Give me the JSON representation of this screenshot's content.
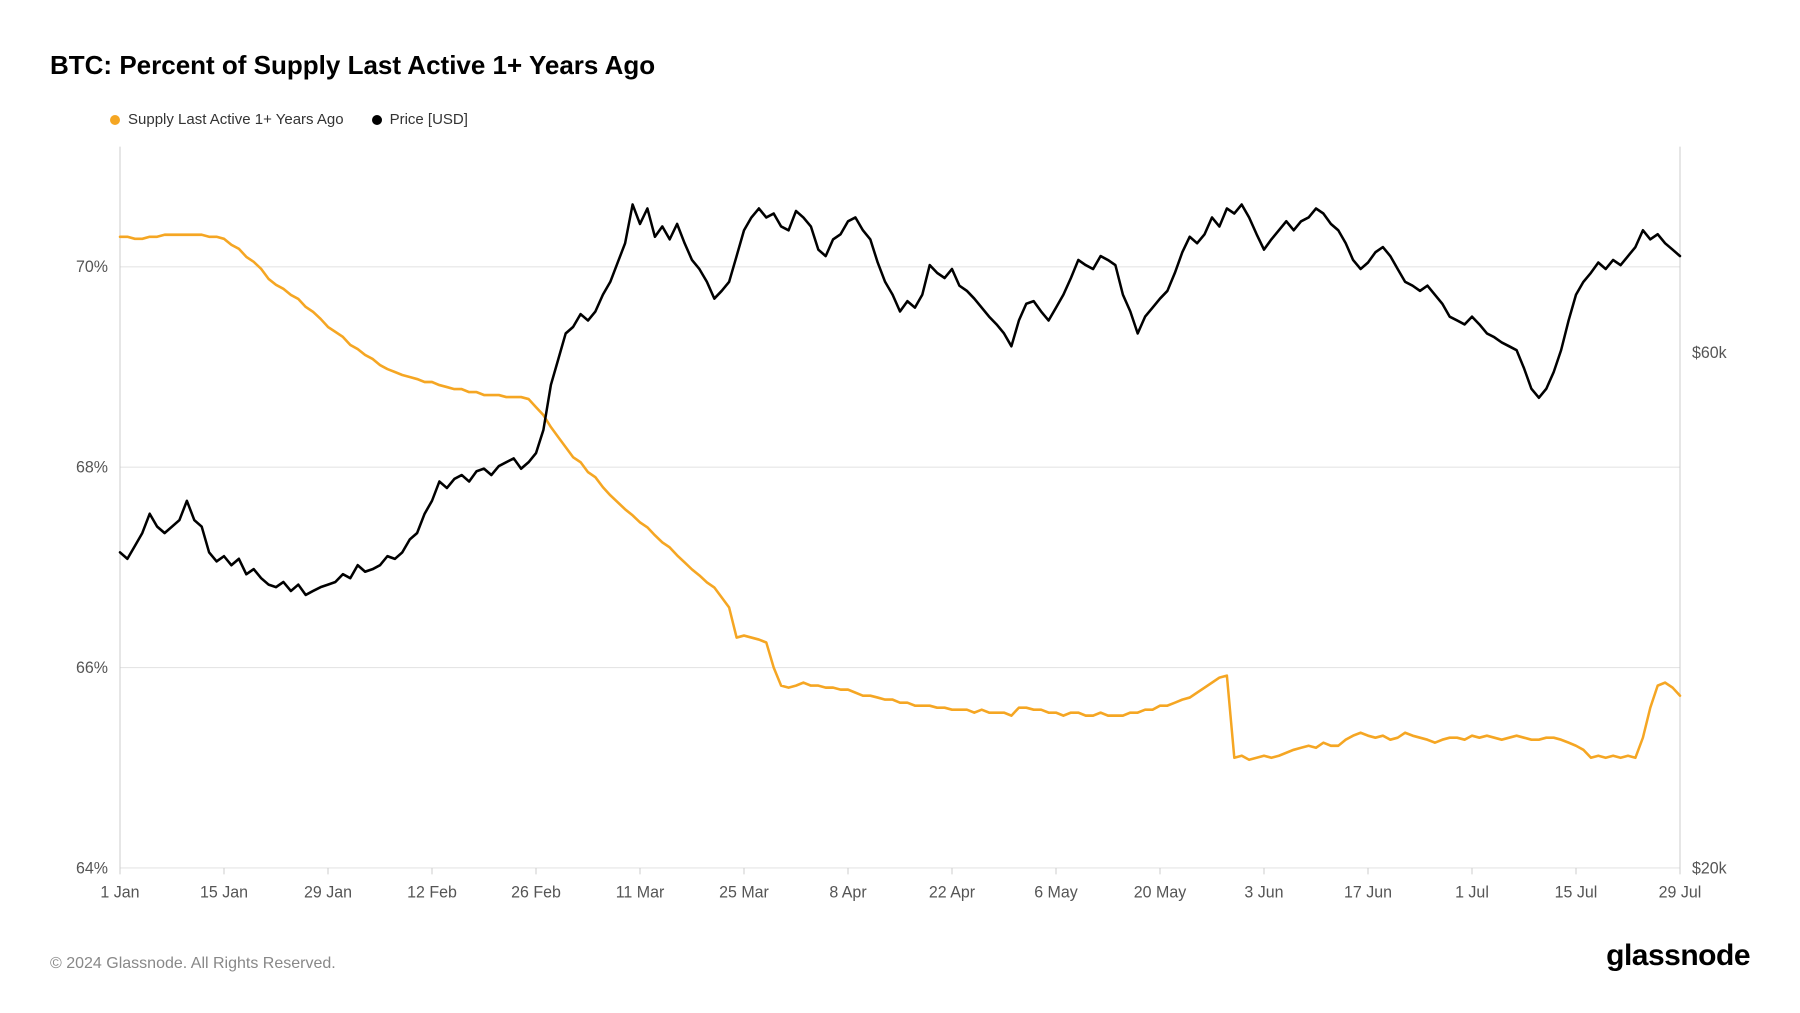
{
  "title": "BTC: Percent of Supply Last Active 1+ Years Ago",
  "copyright": "© 2024 Glassnode. All Rights Reserved.",
  "brand": "glassnode",
  "chart": {
    "type": "line-dual-axis",
    "background_color": "#ffffff",
    "grid_color": "#e5e5e5",
    "axis_color": "#cccccc",
    "text_color": "#555555",
    "title_fontsize": 26,
    "axis_fontsize": 16,
    "legend_fontsize": 15,
    "line_width": 2.5,
    "x": {
      "labels": [
        "1 Jan",
        "15 Jan",
        "29 Jan",
        "12 Feb",
        "26 Feb",
        "11 Mar",
        "25 Mar",
        "8 Apr",
        "22 Apr",
        "6 May",
        "20 May",
        "3 Jun",
        "17 Jun",
        "1 Jul",
        "15 Jul",
        "29 Jul"
      ],
      "count": 211
    },
    "y_left": {
      "min": 64,
      "max": 71.2,
      "ticks": [
        64,
        66,
        68,
        70
      ],
      "tick_labels": [
        "64%",
        "66%",
        "68%",
        "70%"
      ]
    },
    "y_right": {
      "min": 20000,
      "max": 76000,
      "ticks": [
        20000,
        60000
      ],
      "tick_labels": [
        "$20k",
        "$60k"
      ]
    },
    "legend": [
      {
        "label": "Supply Last Active 1+ Years Ago",
        "color": "#f5a623"
      },
      {
        "label": "Price [USD]",
        "color": "#000000"
      }
    ],
    "series": [
      {
        "name": "supply",
        "axis": "left",
        "color": "#f5a623",
        "values": [
          70.3,
          70.3,
          70.28,
          70.28,
          70.3,
          70.3,
          70.32,
          70.32,
          70.32,
          70.32,
          70.32,
          70.32,
          70.3,
          70.3,
          70.28,
          70.22,
          70.18,
          70.1,
          70.05,
          69.98,
          69.88,
          69.82,
          69.78,
          69.72,
          69.68,
          69.6,
          69.55,
          69.48,
          69.4,
          69.35,
          69.3,
          69.22,
          69.18,
          69.12,
          69.08,
          69.02,
          68.98,
          68.95,
          68.92,
          68.9,
          68.88,
          68.85,
          68.85,
          68.82,
          68.8,
          68.78,
          68.78,
          68.75,
          68.75,
          68.72,
          68.72,
          68.72,
          68.7,
          68.7,
          68.7,
          68.68,
          68.6,
          68.52,
          68.4,
          68.3,
          68.2,
          68.1,
          68.05,
          67.95,
          67.9,
          67.8,
          67.72,
          67.65,
          67.58,
          67.52,
          67.45,
          67.4,
          67.32,
          67.25,
          67.2,
          67.12,
          67.05,
          66.98,
          66.92,
          66.85,
          66.8,
          66.7,
          66.6,
          66.3,
          66.32,
          66.3,
          66.28,
          66.25,
          66.0,
          65.82,
          65.8,
          65.82,
          65.85,
          65.82,
          65.82,
          65.8,
          65.8,
          65.78,
          65.78,
          65.75,
          65.72,
          65.72,
          65.7,
          65.68,
          65.68,
          65.65,
          65.65,
          65.62,
          65.62,
          65.62,
          65.6,
          65.6,
          65.58,
          65.58,
          65.58,
          65.55,
          65.58,
          65.55,
          65.55,
          65.55,
          65.52,
          65.6,
          65.6,
          65.58,
          65.58,
          65.55,
          65.55,
          65.52,
          65.55,
          65.55,
          65.52,
          65.52,
          65.55,
          65.52,
          65.52,
          65.52,
          65.55,
          65.55,
          65.58,
          65.58,
          65.62,
          65.62,
          65.65,
          65.68,
          65.7,
          65.75,
          65.8,
          65.85,
          65.9,
          65.92,
          65.1,
          65.12,
          65.08,
          65.1,
          65.12,
          65.1,
          65.12,
          65.15,
          65.18,
          65.2,
          65.22,
          65.2,
          65.25,
          65.22,
          65.22,
          65.28,
          65.32,
          65.35,
          65.32,
          65.3,
          65.32,
          65.28,
          65.3,
          65.35,
          65.32,
          65.3,
          65.28,
          65.25,
          65.28,
          65.3,
          65.3,
          65.28,
          65.32,
          65.3,
          65.32,
          65.3,
          65.28,
          65.3,
          65.32,
          65.3,
          65.28,
          65.28,
          65.3,
          65.3,
          65.28,
          65.25,
          65.22,
          65.18,
          65.1,
          65.12,
          65.1,
          65.12,
          65.1,
          65.12,
          65.1,
          65.3,
          65.6,
          65.82,
          65.85,
          65.8,
          65.72
        ]
      },
      {
        "name": "price",
        "axis": "right",
        "color": "#000000",
        "values": [
          44500,
          44000,
          45000,
          46000,
          47500,
          46500,
          46000,
          46500,
          47000,
          48500,
          47000,
          46500,
          44500,
          43800,
          44200,
          43500,
          44000,
          42800,
          43200,
          42500,
          42000,
          41800,
          42200,
          41500,
          42000,
          41200,
          41500,
          41800,
          42000,
          42200,
          42800,
          42500,
          43500,
          43000,
          43200,
          43500,
          44200,
          44000,
          44500,
          45500,
          46000,
          47500,
          48500,
          50000,
          49500,
          50200,
          50500,
          50000,
          50800,
          51000,
          50500,
          51200,
          51500,
          51800,
          51000,
          51500,
          52200,
          54000,
          57500,
          59500,
          61500,
          62000,
          63000,
          62500,
          63200,
          64500,
          65500,
          67000,
          68500,
          71500,
          70000,
          71200,
          69000,
          69800,
          68800,
          70000,
          68500,
          67200,
          66500,
          65500,
          64200,
          64800,
          65500,
          67500,
          69500,
          70500,
          71200,
          70500,
          70800,
          69800,
          69500,
          71000,
          70500,
          69800,
          68000,
          67500,
          68800,
          69200,
          70200,
          70500,
          69500,
          68800,
          67000,
          65500,
          64500,
          63200,
          64000,
          63500,
          64500,
          66800,
          66200,
          65800,
          66500,
          65200,
          64800,
          64200,
          63500,
          62800,
          62200,
          61500,
          60500,
          62500,
          63800,
          64000,
          63200,
          62500,
          63500,
          64500,
          65800,
          67200,
          66800,
          66500,
          67500,
          67200,
          66800,
          64500,
          63200,
          61500,
          62800,
          63500,
          64200,
          64800,
          66200,
          67800,
          69000,
          68500,
          69200,
          70500,
          69800,
          71200,
          70800,
          71500,
          70500,
          69200,
          68000,
          68800,
          69500,
          70200,
          69500,
          70200,
          70500,
          71200,
          70800,
          70000,
          69500,
          68500,
          67200,
          66500,
          67000,
          67800,
          68200,
          67500,
          66500,
          65500,
          65200,
          64800,
          65200,
          64500,
          63800,
          62800,
          62500,
          62200,
          62800,
          62200,
          61500,
          61200,
          60800,
          60500,
          60200,
          58800,
          57200,
          56500,
          57200,
          58500,
          60200,
          62500,
          64500,
          65500,
          66200,
          67000,
          66500,
          67200,
          66800,
          67500,
          68200,
          69500,
          68800,
          69200,
          68500,
          68000,
          67500
        ]
      }
    ]
  }
}
